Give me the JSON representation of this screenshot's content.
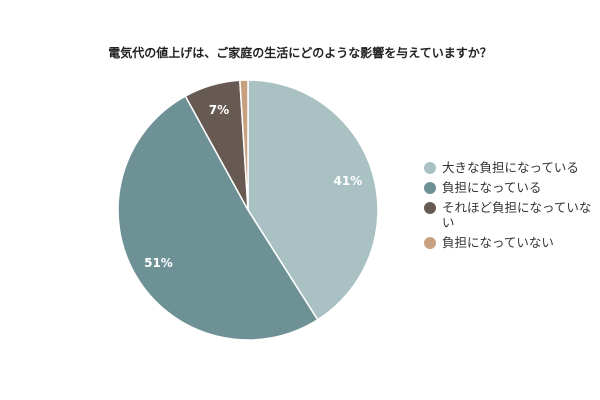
{
  "title": "電気代の値上げは、ご家庭の生活にどのような影響を与えていますか？",
  "chart_data": {
    "type": "pie",
    "labels": [
      "大きな負担になっている",
      "負担になっている",
      "それほど負担になっていない",
      "負担になっていない"
    ],
    "values": [
      41,
      51,
      7,
      1
    ],
    "data_labels": [
      "41%",
      "51%",
      "7%",
      ""
    ],
    "colors": [
      "#a9c1c3",
      "#6e9195",
      "#675a52",
      "#c7a07f"
    ],
    "legend_position": "right"
  }
}
